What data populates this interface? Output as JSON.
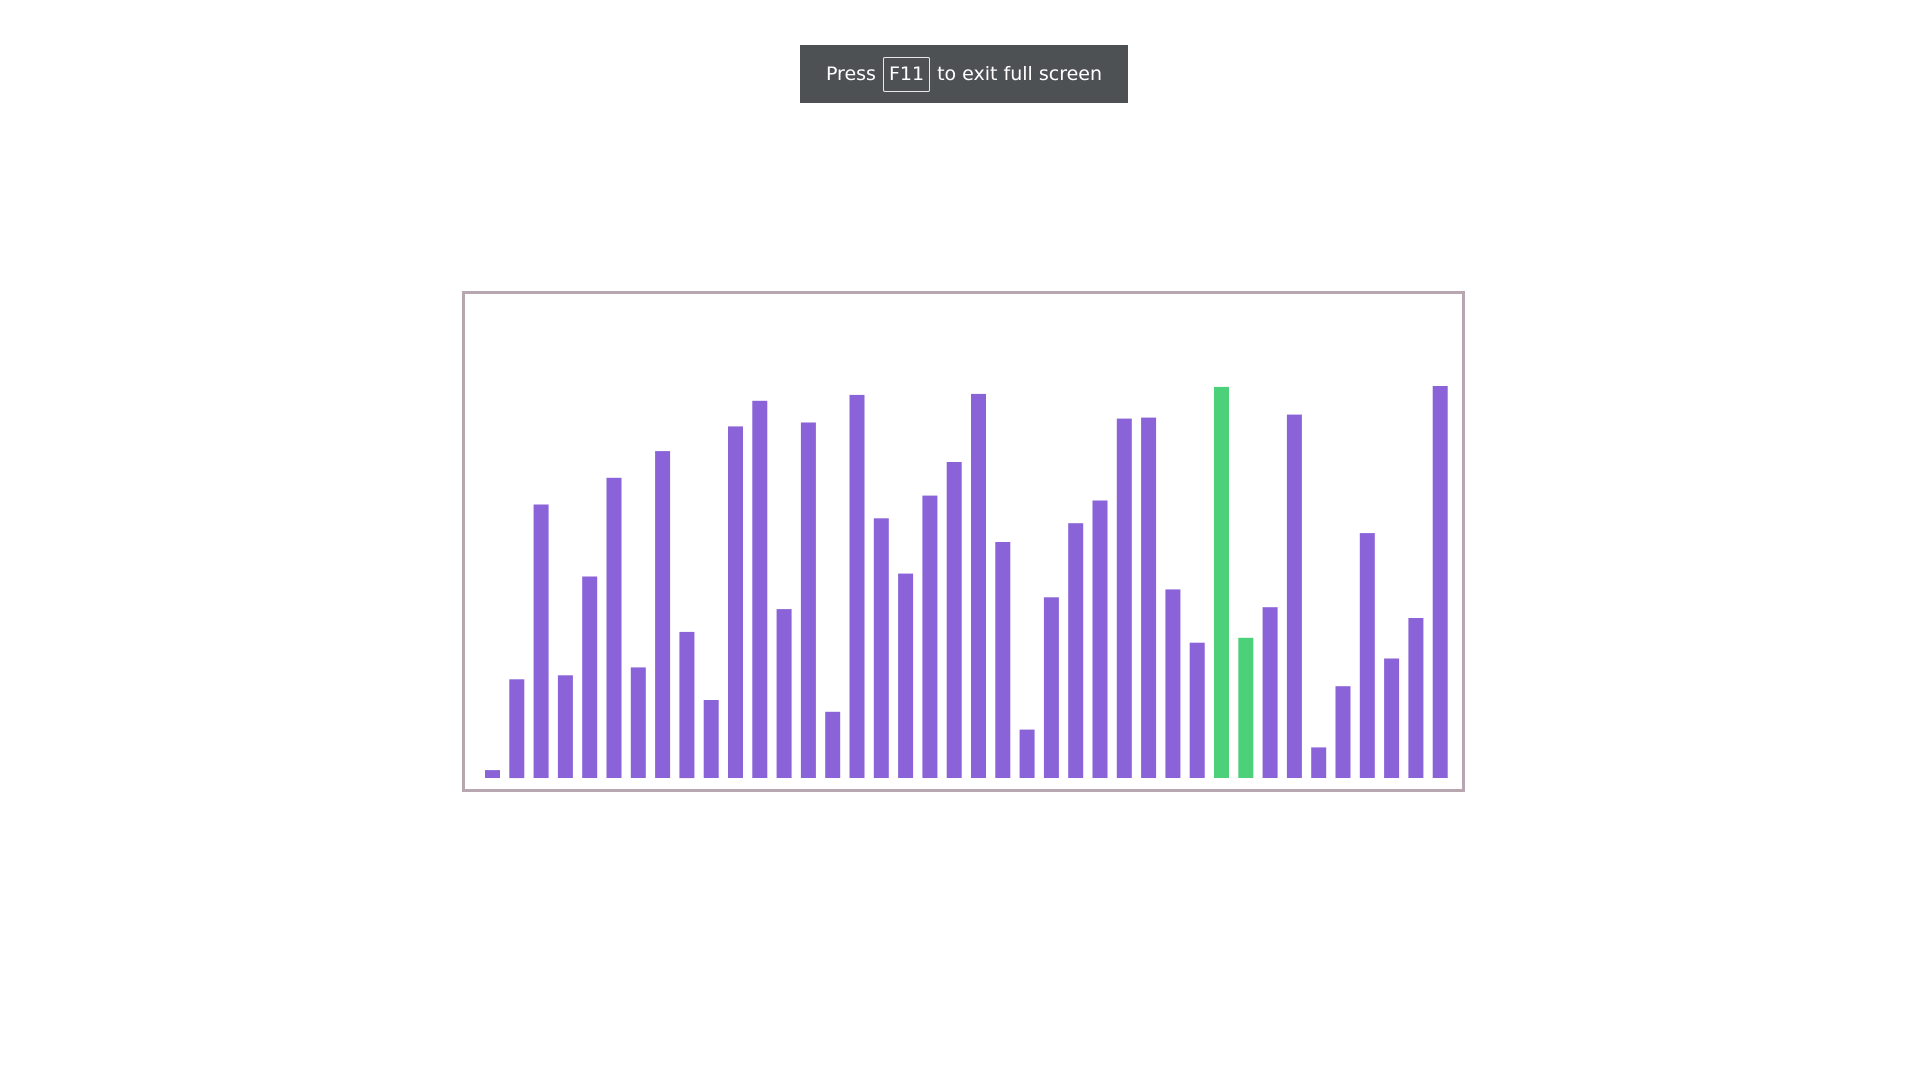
{
  "fullscreen_toast": {
    "prefix": "Press",
    "key": "F11",
    "suffix": "to exit full screen"
  },
  "colors": {
    "bar_default": "#8a63d8",
    "bar_highlight": "#4cd17a",
    "frame_border": "#b8a6b1",
    "toast_background": "#4e5154"
  },
  "chart_data": {
    "type": "bar",
    "ylim": [
      0,
      400
    ],
    "values": [
      8,
      100,
      277,
      104,
      204,
      304,
      112,
      331,
      148,
      79,
      356,
      382,
      171,
      360,
      67,
      388,
      263,
      207,
      286,
      320,
      389,
      239,
      49,
      183,
      258,
      281,
      364,
      365,
      191,
      137,
      396,
      142,
      173,
      368,
      31,
      93,
      248,
      121,
      162,
      397
    ],
    "highlight_indices": [
      30,
      31
    ]
  }
}
